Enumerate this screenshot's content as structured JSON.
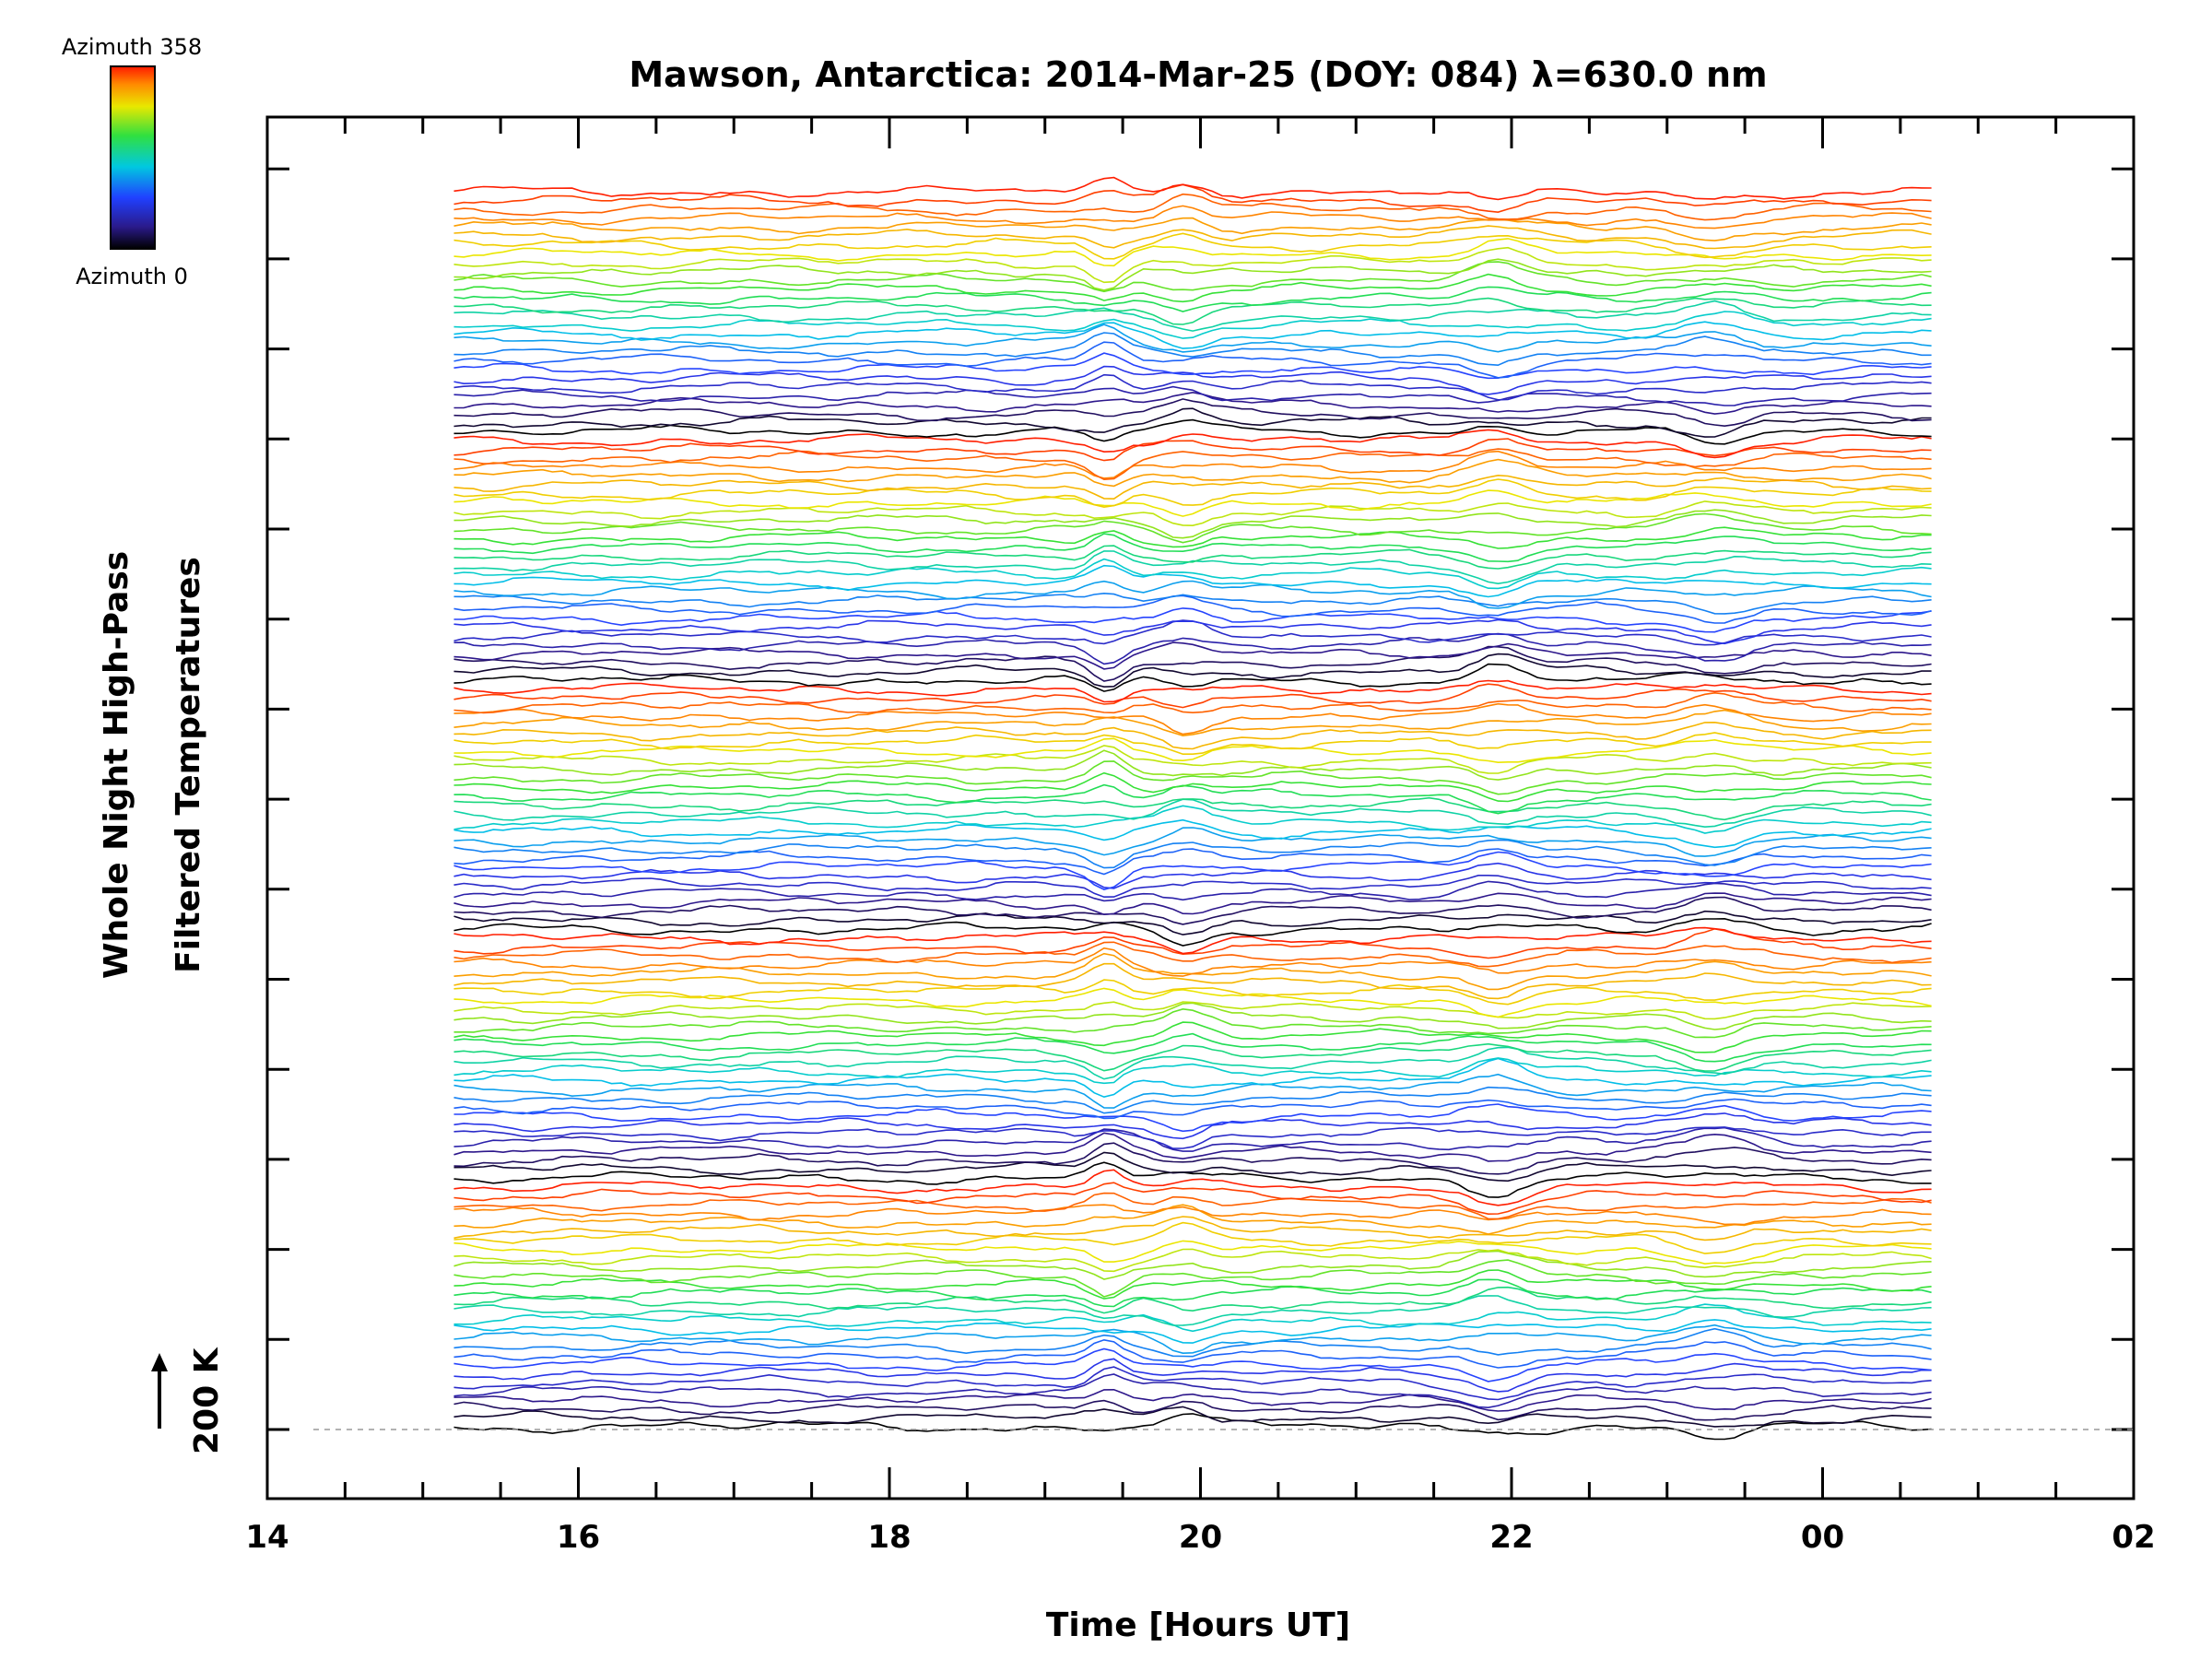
{
  "chart_data": {
    "type": "line",
    "title": "Mawson, Antarctica: 2014-Mar-25 (DOY: 084) λ=630.0 nm",
    "xlabel": "Time [Hours UT]",
    "ylabel_line1": "Whole Night High-Pass",
    "ylabel_line2": "Filtered Temperatures",
    "x_tick_labels": [
      "14",
      "16",
      "18",
      "20",
      "22",
      "00",
      "02"
    ],
    "x_range_hours": [
      14,
      26
    ],
    "data_x_range_hours": [
      15.2,
      24.7
    ],
    "scale_label": "200 K",
    "colorbar_top_label": "Azimuth 358",
    "colorbar_bottom_label": "Azimuth 0",
    "azimuth_range": [
      0,
      358
    ],
    "curve_count": 140,
    "azimuth_cycle_length": 28,
    "features": [
      {
        "time_hours": 19.4,
        "amplitude": 18
      },
      {
        "time_hours": 19.9,
        "amplitude": 14
      },
      {
        "time_hours": 21.9,
        "amplitude": 16
      },
      {
        "time_hours": 23.3,
        "amplitude": 14
      }
    ],
    "grid": false,
    "baseline_dashed": true
  }
}
